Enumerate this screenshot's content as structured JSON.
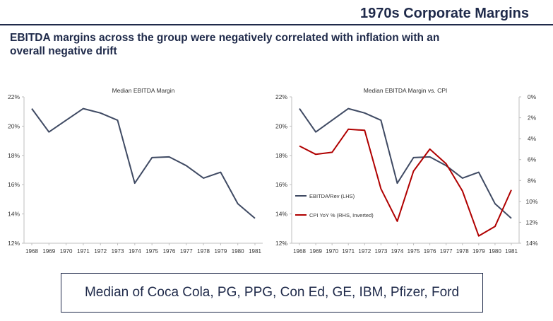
{
  "header": {
    "title": "1970s Corporate Margins",
    "subtitle": "EBITDA margins across the group were negatively correlated with inflation with an overall negative drift"
  },
  "footer": {
    "text": "Median of Coca Cola, PG, PPG, Con Ed, GE, IBM, Pfizer, Ford"
  },
  "colors": {
    "ebitda": "#3f4a63",
    "cpi": "#b00000",
    "axis": "#bfbfbf",
    "text": "#1f2a4a"
  },
  "chart_data": [
    {
      "type": "line",
      "title": "Median EBITDA Margin",
      "categories": [
        "1968",
        "1969",
        "1970",
        "1971",
        "1972",
        "1973",
        "1974",
        "1975",
        "1976",
        "1977",
        "1978",
        "1979",
        "1980",
        "1981"
      ],
      "series": [
        {
          "name": "EBITDA/Rev",
          "values": [
            21.2,
            19.6,
            20.4,
            21.2,
            20.9,
            20.4,
            16.1,
            17.85,
            17.9,
            17.3,
            16.45,
            16.85,
            14.7,
            13.7
          ]
        }
      ],
      "ylim": [
        12,
        22
      ],
      "yticks": [
        "12%",
        "14%",
        "16%",
        "18%",
        "20%",
        "22%"
      ],
      "xlabel": "",
      "ylabel": ""
    },
    {
      "type": "line",
      "title": "Median EBITDA Margin vs. CPI",
      "categories": [
        "1968",
        "1969",
        "1970",
        "1971",
        "1972",
        "1973",
        "1974",
        "1975",
        "1976",
        "1977",
        "1978",
        "1979",
        "1980",
        "1981"
      ],
      "series": [
        {
          "name": "EBITDA/Rev (LHS)",
          "axis": "left",
          "values": [
            21.2,
            19.6,
            20.4,
            21.2,
            20.9,
            20.4,
            16.1,
            17.85,
            17.9,
            17.3,
            16.45,
            16.85,
            14.7,
            13.7
          ]
        },
        {
          "name": "CPI YoY % (RHS, Inverted)",
          "axis": "right",
          "values": [
            4.7,
            5.5,
            5.3,
            3.1,
            3.2,
            8.8,
            11.9,
            7.1,
            5.0,
            6.4,
            9.0,
            13.3,
            12.4,
            8.9
          ]
        }
      ],
      "ylim_left": [
        12,
        22
      ],
      "ylim_right": [
        0,
        14
      ],
      "right_inverted": true,
      "yticks_left": [
        "12%",
        "14%",
        "16%",
        "18%",
        "20%",
        "22%"
      ],
      "yticks_right": [
        "0%",
        "2%",
        "4%",
        "6%",
        "8%",
        "10%",
        "12%",
        "14%"
      ],
      "legend_position": "lower-left"
    }
  ]
}
